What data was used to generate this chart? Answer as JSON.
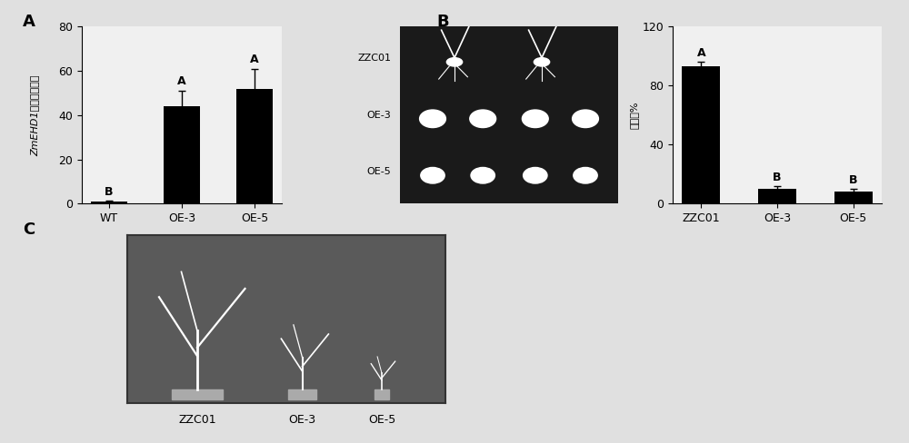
{
  "panel_A": {
    "categories": [
      "WT",
      "OE-3",
      "OE-5"
    ],
    "values": [
      1,
      44,
      52
    ],
    "errors": [
      0.3,
      7,
      9
    ],
    "significance": [
      "B",
      "A",
      "A"
    ],
    "ylabel_italic": "ZmEHD1",
    "ylabel_normal": "的相对表达量",
    "ylim": [
      0,
      80
    ],
    "yticks": [
      0,
      20,
      40,
      60,
      80
    ]
  },
  "panel_B_chart": {
    "categories": [
      "ZZC01",
      "OE-3",
      "OE-5"
    ],
    "values": [
      93,
      10,
      8
    ],
    "errors": [
      3,
      2,
      2
    ],
    "significance": [
      "A",
      "B",
      "B"
    ],
    "ylabel": "发芽率%",
    "ylim": [
      0,
      120
    ],
    "yticks": [
      0,
      40,
      80,
      120
    ]
  },
  "panel_B_photo_labels": [
    "ZZC01",
    "OE-3",
    "OE-5"
  ],
  "panel_C_sublabels": [
    "ZZC01",
    "OE-3",
    "OE-5"
  ],
  "bar_color": "#000000",
  "figure_bg": "#e0e0e0",
  "chart_bg": "#f0f0f0",
  "photo_bg_dark": "#222222",
  "photo_bg_medium": "#555555"
}
